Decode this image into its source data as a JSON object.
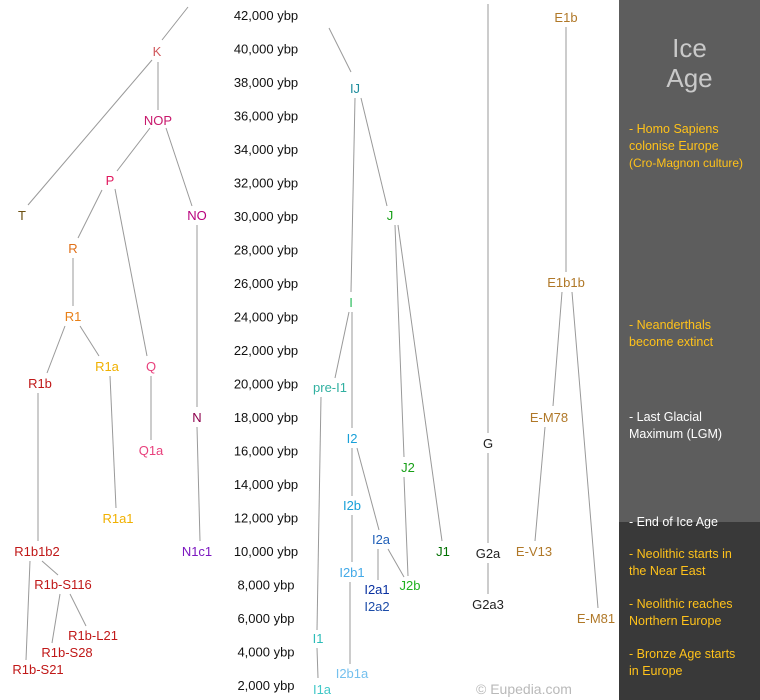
{
  "years": [
    "42,000 ybp",
    "40,000 ybp",
    "38,000 ybp",
    "36,000 ybp",
    "34,000 ybp",
    "32,000 ybp",
    "30,000 ybp",
    "28,000 ybp",
    "26,000 ybp",
    "24,000 ybp",
    "22,000 ybp",
    "20,000 ybp",
    "18,000 ybp",
    "16,000 ybp",
    "14,000 ybp",
    "12,000 ybp",
    "10,000 ybp",
    "8,000 ybp",
    "6,000 ybp",
    "4,000 ybp",
    "2,000 ybp"
  ],
  "colors": {
    "T": "#6b4f10",
    "K": "#d0585c",
    "NOP": "#c8186c",
    "P": "#e0185e",
    "NO": "#b8007c",
    "R": "#e07018",
    "R1": "#e88018",
    "R1a": "#f0b000",
    "R1b": "#c01818",
    "R1b_sub": "#c01818",
    "Q": "#e8407c",
    "Q1a": "#e8407c",
    "N": "#8c004c",
    "N1c1": "#7c18c0",
    "IJ": "#1c8c9c",
    "I": "#2cbc5c",
    "preI1": "#30b0a0",
    "I2": "#18a0d8",
    "I2b": "#18a0d8",
    "I2b1": "#44aae8",
    "I2b1a": "#74c0ee",
    "I2a": "#2060b8",
    "I2a1": "#0830a0",
    "I2a2": "#1c4ca8",
    "I1": "#2cbcb8",
    "I1a": "#40c8c8",
    "J": "#18a018",
    "J1": "#007000",
    "J2": "#18a018",
    "J2b": "#20b020",
    "G": "#222222",
    "E": "#b07828",
    "line": "#999999",
    "year": "#111111"
  },
  "haplogroups": [
    {
      "id": "T",
      "label": "T"
    },
    {
      "id": "K",
      "label": "K"
    },
    {
      "id": "NOP",
      "label": "NOP"
    },
    {
      "id": "P",
      "label": "P"
    },
    {
      "id": "NO",
      "label": "NO"
    },
    {
      "id": "R",
      "label": "R"
    },
    {
      "id": "R1",
      "label": "R1"
    },
    {
      "id": "R1a",
      "label": "R1a"
    },
    {
      "id": "R1b",
      "label": "R1b"
    },
    {
      "id": "Q",
      "label": "Q"
    },
    {
      "id": "Q1a",
      "label": "Q1a"
    },
    {
      "id": "N",
      "label": "N"
    },
    {
      "id": "N1c1",
      "label": "N1c1"
    },
    {
      "id": "R1a1",
      "label": "R1a1"
    },
    {
      "id": "R1b1b2",
      "label": "R1b1b2"
    },
    {
      "id": "R1b-S116",
      "label": "R1b-S116"
    },
    {
      "id": "R1b-L21",
      "label": "R1b-L21"
    },
    {
      "id": "R1b-S28",
      "label": "R1b-S28"
    },
    {
      "id": "R1b-S21",
      "label": "R1b-S21"
    },
    {
      "id": "IJ",
      "label": "IJ"
    },
    {
      "id": "I",
      "label": "I"
    },
    {
      "id": "pre-I1",
      "label": "pre-I1"
    },
    {
      "id": "I2",
      "label": "I2"
    },
    {
      "id": "I2b",
      "label": "I2b"
    },
    {
      "id": "I2b1",
      "label": "I2b1"
    },
    {
      "id": "I2b1a",
      "label": "I2b1a"
    },
    {
      "id": "I2a",
      "label": "I2a"
    },
    {
      "id": "I2a1",
      "label": "I2a1"
    },
    {
      "id": "I2a2",
      "label": "I2a2"
    },
    {
      "id": "I1",
      "label": "I1"
    },
    {
      "id": "I1a",
      "label": "I1a"
    },
    {
      "id": "J",
      "label": "J"
    },
    {
      "id": "J2",
      "label": "J2"
    },
    {
      "id": "J2b",
      "label": "J2b"
    },
    {
      "id": "J1",
      "label": "J1"
    },
    {
      "id": "G",
      "label": "G"
    },
    {
      "id": "G2a",
      "label": "G2a"
    },
    {
      "id": "G2a3",
      "label": "G2a3"
    },
    {
      "id": "E1b",
      "label": "E1b"
    },
    {
      "id": "E1b1b",
      "label": "E1b1b"
    },
    {
      "id": "E-M78",
      "label": "E-M78"
    },
    {
      "id": "E-V13",
      "label": "E-V13"
    },
    {
      "id": "E-M81",
      "label": "E-M81"
    }
  ],
  "sidebar": {
    "title_line1": "Ice",
    "title_line2": "Age",
    "notes": [
      {
        "line1": "- Homo Sapiens",
        "line2": "colonise Europe",
        "line3": "(Cro-Magnon culture)"
      },
      {
        "line1": "- Neanderthals",
        "line2": "become extinct"
      },
      {
        "line1": "- Last Glacial",
        "line2": "Maximum (LGM)"
      },
      {
        "line1": "- End of Ice Age"
      },
      {
        "line1": "- Neolithic starts in",
        "line2": "the Near East"
      },
      {
        "line1": "- Neolithic reaches",
        "line2": "Northern Europe"
      },
      {
        "line1": "- Bronze Age starts",
        "line2": "in Europe"
      }
    ]
  },
  "watermark": "© Eupedia.com"
}
